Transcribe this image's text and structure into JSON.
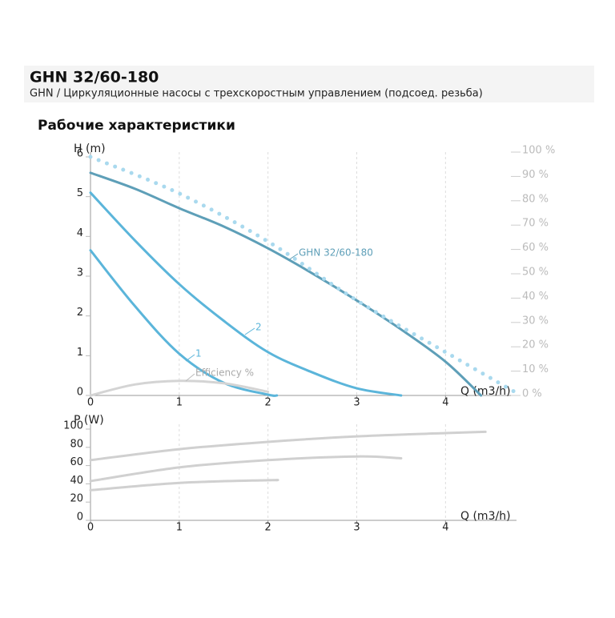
{
  "header": {
    "title": "GHN 32/60-180",
    "subtitle": "GHN / Циркуляционные насосы с трехскоростным управлением (подсоед. резьба)"
  },
  "section_title": "Рабочие характеристики",
  "chart_data": [
    {
      "type": "line",
      "ylabel": "H (m)",
      "xlabel": "Q (m3/h)",
      "xlim": [
        0,
        4.8
      ],
      "xticks": [
        0,
        1,
        2,
        3,
        4
      ],
      "ylim": [
        0,
        6
      ],
      "yticks": [
        0,
        1,
        2,
        3,
        4,
        5,
        6
      ],
      "y2lim": [
        0,
        100
      ],
      "y2ticks": [
        {
          "value": 0,
          "label": "0 %"
        },
        {
          "value": 10,
          "label": "10 %"
        },
        {
          "value": 20,
          "label": "20 %"
        },
        {
          "value": 30,
          "label": "30 %"
        },
        {
          "value": 40,
          "label": "40 %"
        },
        {
          "value": 50,
          "label": "50 %"
        },
        {
          "value": 60,
          "label": "60 %"
        },
        {
          "value": 70,
          "label": "70 %"
        },
        {
          "value": 80,
          "label": "80 %"
        },
        {
          "value": 90,
          "label": "90 %"
        },
        {
          "value": 100,
          "label": "100 %"
        }
      ],
      "grid": true,
      "series": [
        {
          "name": "GHN 32/60-180",
          "color": "#5e9fb8",
          "x": [
            0,
            0.5,
            1,
            1.5,
            2,
            2.5,
            3,
            3.5,
            4,
            4.4
          ],
          "values": [
            5.6,
            5.2,
            4.71,
            4.25,
            3.7,
            3.07,
            2.39,
            1.66,
            0.85,
            0
          ]
        },
        {
          "name": "2",
          "color": "#5bb5da",
          "x": [
            0,
            0.5,
            1,
            1.5,
            2,
            2.5,
            3,
            3.5
          ],
          "values": [
            5.1,
            3.9,
            2.8,
            1.88,
            1.09,
            0.58,
            0.18,
            0
          ]
        },
        {
          "name": "1",
          "color": "#5bb5da",
          "x": [
            0,
            0.5,
            1,
            1.5,
            2,
            2.1
          ],
          "values": [
            3.65,
            2.25,
            1.05,
            0.32,
            0.02,
            0
          ]
        },
        {
          "name": "Efficiency %",
          "color": "#d4d4d4",
          "axis": "y2",
          "x": [
            0,
            0.5,
            1,
            1.5,
            2
          ],
          "values": [
            0,
            4.5,
            6,
            5,
            1.5
          ]
        },
        {
          "color": "#a9d9ee",
          "line_style": "dots",
          "x": [
            0,
            1,
            2,
            3,
            4,
            4.85
          ],
          "values": [
            6,
            5.08,
            3.87,
            2.39,
            1.09,
            0
          ]
        }
      ]
    },
    {
      "type": "line",
      "ylabel": "P (W)",
      "xlabel": "Q (m3/h)",
      "xlim": [
        0,
        4.8
      ],
      "xticks": [
        0,
        1,
        2,
        3,
        4
      ],
      "ylim": [
        0,
        100
      ],
      "yticks": [
        0,
        20,
        40,
        60,
        80,
        100
      ],
      "grid": true,
      "series": [
        {
          "color": "#d0d0d0",
          "x": [
            0,
            1,
            2,
            3,
            4,
            4.45
          ],
          "values": [
            66,
            78,
            86,
            92,
            95.6,
            97
          ]
        },
        {
          "color": "#d0d0d0",
          "x": [
            0,
            1,
            2,
            3,
            3.5
          ],
          "values": [
            43,
            58,
            66,
            70,
            68
          ]
        },
        {
          "color": "#d0d0d0",
          "x": [
            0,
            1,
            2,
            2.1
          ],
          "values": [
            33,
            41,
            44,
            44
          ]
        }
      ]
    }
  ]
}
